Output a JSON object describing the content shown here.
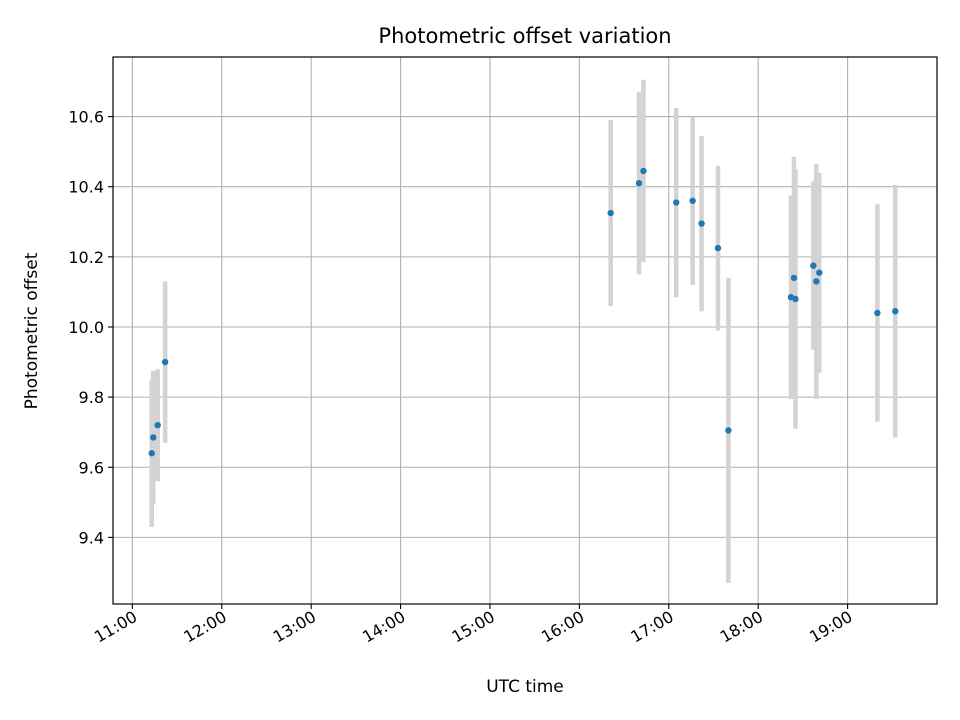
{
  "chart_data": {
    "type": "scatter",
    "title": "Photometric offset variation",
    "xlabel": "UTC time",
    "ylabel": "Photometric offset",
    "x_tick_labels": [
      "11:00",
      "12:00",
      "13:00",
      "14:00",
      "15:00",
      "16:00",
      "17:00",
      "18:00",
      "19:00"
    ],
    "y_tick_labels": [
      "9.4",
      "9.6",
      "9.8",
      "10.0",
      "10.2",
      "10.4",
      "10.6"
    ],
    "y_ticks": [
      9.4,
      9.6,
      9.8,
      10.0,
      10.2,
      10.4,
      10.6
    ],
    "xlim": [
      "10:47",
      "20:00"
    ],
    "ylim": [
      9.21,
      10.77
    ],
    "grid": true,
    "colors": {
      "marker": "#1f77b4",
      "errorbar": "#d3d3d3",
      "grid": "#b0b0b0"
    },
    "points": [
      {
        "x": "11:13",
        "y": 9.64,
        "yerr": 0.21
      },
      {
        "x": "11:14",
        "y": 9.685,
        "yerr": 0.19
      },
      {
        "x": "11:17",
        "y": 9.72,
        "yerr": 0.16
      },
      {
        "x": "11:22",
        "y": 9.9,
        "yerr": 0.23
      },
      {
        "x": "16:21",
        "y": 10.325,
        "yerr": 0.265
      },
      {
        "x": "16:40",
        "y": 10.41,
        "yerr": 0.26
      },
      {
        "x": "16:43",
        "y": 10.445,
        "yerr": 0.26
      },
      {
        "x": "17:05",
        "y": 10.355,
        "yerr": 0.27
      },
      {
        "x": "17:16",
        "y": 10.36,
        "yerr": 0.24
      },
      {
        "x": "17:22",
        "y": 10.295,
        "yerr": 0.25
      },
      {
        "x": "17:33",
        "y": 10.225,
        "yerr": 0.235
      },
      {
        "x": "17:40",
        "y": 9.705,
        "yerr": 0.435
      },
      {
        "x": "18:22",
        "y": 10.085,
        "yerr": 0.29
      },
      {
        "x": "18:24",
        "y": 10.14,
        "yerr": 0.345
      },
      {
        "x": "18:25",
        "y": 10.08,
        "yerr": 0.37
      },
      {
        "x": "18:37",
        "y": 10.175,
        "yerr": 0.24
      },
      {
        "x": "18:39",
        "y": 10.13,
        "yerr": 0.335
      },
      {
        "x": "18:41",
        "y": 10.155,
        "yerr": 0.285
      },
      {
        "x": "19:20",
        "y": 10.04,
        "yerr": 0.31
      },
      {
        "x": "19:32",
        "y": 10.045,
        "yerr": 0.36
      }
    ]
  }
}
